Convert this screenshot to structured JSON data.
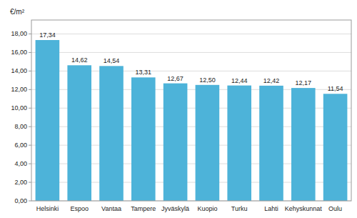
{
  "chart_data": {
    "type": "bar",
    "ylabel": "€/m²",
    "categories": [
      "Helsinki",
      "Espoo",
      "Vantaa",
      "Tampere",
      "Jyväskylä",
      "Kuopio",
      "Turku",
      "Lahti",
      "Kehyskunnat",
      "Oulu"
    ],
    "values": [
      17.34,
      14.62,
      14.54,
      13.31,
      12.67,
      12.5,
      12.44,
      12.42,
      12.17,
      11.54
    ],
    "value_labels": [
      "17,34",
      "14,62",
      "14,54",
      "13,31",
      "12,67",
      "12,50",
      "12,44",
      "12,42",
      "12,17",
      "11,54"
    ],
    "data_labels": true,
    "color": "#4db3d9",
    "ylim": [
      0,
      19.5
    ],
    "yticks": [
      {
        "value": 0.0,
        "label": "0,00"
      },
      {
        "value": 2.0,
        "label": "2,00"
      },
      {
        "value": 4.0,
        "label": "4,00"
      },
      {
        "value": 6.0,
        "label": "6,00"
      },
      {
        "value": 8.0,
        "label": "8,00"
      },
      {
        "value": 10.0,
        "label": "10,00"
      },
      {
        "value": 12.0,
        "label": "12,00"
      },
      {
        "value": 14.0,
        "label": "14,00"
      },
      {
        "value": 16.0,
        "label": "16,00"
      },
      {
        "value": 18.0,
        "label": "18,00"
      }
    ],
    "grid": true
  }
}
